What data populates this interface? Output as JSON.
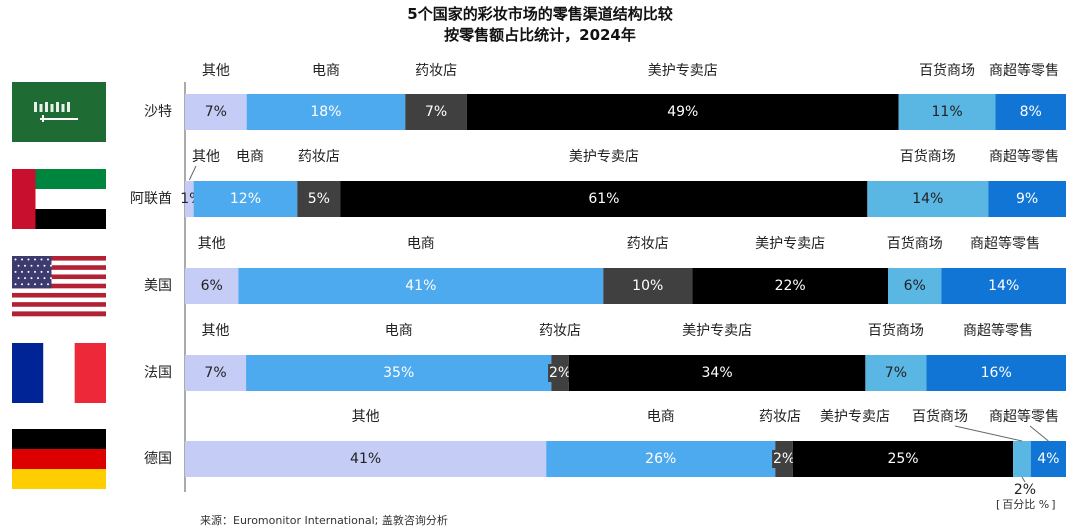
{
  "chart_data": {
    "type": "bar",
    "orientation": "horizontal",
    "stacked": true,
    "normalized": true,
    "title": "5个国家的彩妆市场的零售渠道结构比较",
    "subtitle": "按零售额占比统计，2024年",
    "unit": "百分比 %",
    "source": "来源：Euromonitor International; 盖敦咨询分析",
    "segments": [
      {
        "name": "其他",
        "color": "#c5cdf6"
      },
      {
        "name": "电商",
        "color": "#4eaaee"
      },
      {
        "name": "药妆店",
        "color": "#404040"
      },
      {
        "name": "美护专卖店",
        "color": "#000000"
      },
      {
        "name": "百货商场",
        "color": "#5ab6e2"
      },
      {
        "name": "商超等零售",
        "color": "#1175d6"
      }
    ],
    "countries": [
      {
        "name": "沙特",
        "flag": "saudi-arabia",
        "values": [
          7,
          18,
          7,
          49,
          11,
          8
        ]
      },
      {
        "name": "阿联酋",
        "flag": "uae",
        "values": [
          1,
          12,
          5,
          61,
          14,
          9
        ]
      },
      {
        "name": "美国",
        "flag": "usa",
        "values": [
          6,
          41,
          10,
          22,
          6,
          14
        ]
      },
      {
        "name": "法国",
        "flag": "france",
        "values": [
          7,
          35,
          2,
          34,
          7,
          16
        ]
      },
      {
        "name": "德国",
        "flag": "germany",
        "values": [
          41,
          26,
          2,
          25,
          2,
          4
        ]
      }
    ],
    "grid": false,
    "legend": "segment names printed above each bar"
  }
}
